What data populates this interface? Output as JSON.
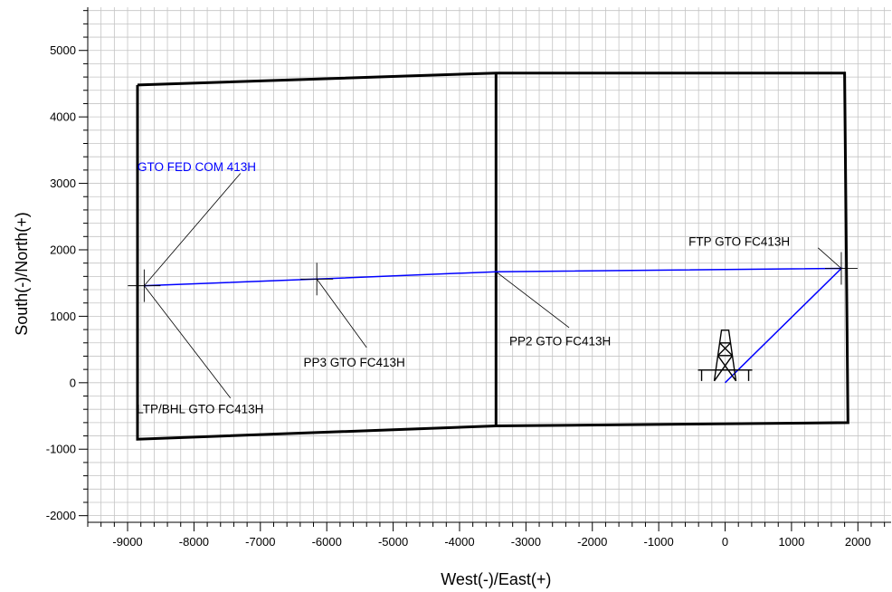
{
  "chart_data": {
    "type": "line",
    "xlabel": "West(-)/East(+)",
    "ylabel": "South(-)/North(+)",
    "xlim": [
      -9600,
      2500
    ],
    "ylim": [
      -2100,
      5650
    ],
    "xticks": [
      -9000,
      -8000,
      -7000,
      -6000,
      -5000,
      -4000,
      -3000,
      -2000,
      -1000,
      0,
      1000,
      2000
    ],
    "yticks": [
      -2000,
      -1000,
      0,
      1000,
      2000,
      3000,
      4000,
      5000
    ],
    "grid": true,
    "colors": {
      "well": "#0000ff",
      "lease": "#000000",
      "grid": "#c4c4c4"
    },
    "series": [
      {
        "name": "GTO FED COM 413H",
        "points": [
          [
            0,
            0
          ],
          [
            1750,
            1720
          ],
          [
            -3450,
            1670
          ],
          [
            -6150,
            1560
          ],
          [
            -8750,
            1460
          ]
        ]
      }
    ],
    "lease_lines": [
      [
        [
          -8850,
          4480
        ],
        [
          -3450,
          4660
        ],
        [
          1800,
          4660
        ],
        [
          1850,
          -600
        ],
        [
          -3450,
          -650
        ],
        [
          -8850,
          -850
        ],
        [
          -8850,
          4480
        ]
      ],
      [
        [
          -3450,
          4660
        ],
        [
          -3450,
          -650
        ]
      ]
    ],
    "markers": [
      {
        "x": 1750,
        "y": 1720
      },
      {
        "x": -6150,
        "y": 1560
      },
      {
        "x": -8750,
        "y": 1460
      }
    ],
    "annotations": [
      {
        "text": "GTO FED COM 413H",
        "x": -8850,
        "y": 3250,
        "ax": -8750,
        "ay": 1460
      },
      {
        "text": "FTP GTO FC413H",
        "x": -550,
        "y": 2130,
        "ax": 1750,
        "ay": 1720
      },
      {
        "text": "PP2 GTO FC413H",
        "x": -3250,
        "y": 630,
        "ax": -3450,
        "ay": 1670
      },
      {
        "text": "PP3 GTO FC413H",
        "x": -6350,
        "y": 310,
        "ax": -6150,
        "ay": 1560
      },
      {
        "text": "LTP/BHL GTO FC413H",
        "x": -8860,
        "y": -390,
        "ax": -8750,
        "ay": 1460
      }
    ],
    "surface_location_icon": "drilling-rig-icon"
  }
}
